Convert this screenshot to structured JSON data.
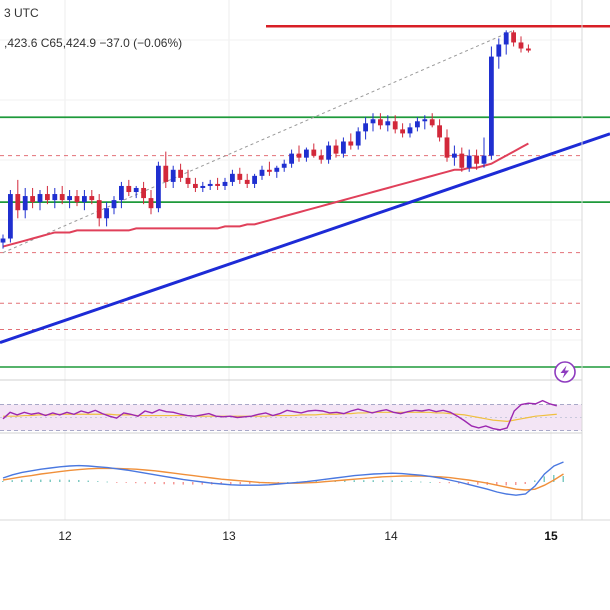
{
  "header": {
    "timezone_fragment": "3 UTC",
    "ohlc_fragment": ",423.6  C65,424.9  −37.0 (−0.06%)"
  },
  "colors": {
    "up_candle": "#1f2fd0",
    "down_candle": "#d2283a",
    "resistance_line": "#d81f26",
    "support_line": "#1e9a3a",
    "trend_line": "#1d2bd6",
    "moving_average": "#e0405a",
    "dashed_level": "#d8404a",
    "rsi_line": "#9c27b0",
    "rsi_signal": "#f0c040",
    "rsi_band": "#f3e5f5",
    "macd_line": "#4a78e0",
    "macd_signal": "#f0903a"
  },
  "chart_data": [
    {
      "type": "candlestick",
      "panel": "price",
      "x_ticks": [
        "12",
        "13",
        "14",
        "15"
      ],
      "current_x_tick": "15",
      "annotation_icon": "lightning-bolt-icon",
      "candles": [
        {
          "o": 0.5,
          "h": 0.54,
          "l": 0.47,
          "c": 0.52
        },
        {
          "o": 0.52,
          "h": 0.76,
          "l": 0.5,
          "c": 0.74
        },
        {
          "o": 0.74,
          "h": 0.81,
          "l": 0.62,
          "c": 0.66
        },
        {
          "o": 0.66,
          "h": 0.77,
          "l": 0.62,
          "c": 0.73
        },
        {
          "o": 0.73,
          "h": 0.77,
          "l": 0.67,
          "c": 0.7
        },
        {
          "o": 0.7,
          "h": 0.76,
          "l": 0.66,
          "c": 0.74
        },
        {
          "o": 0.74,
          "h": 0.78,
          "l": 0.69,
          "c": 0.71
        },
        {
          "o": 0.71,
          "h": 0.77,
          "l": 0.67,
          "c": 0.74
        },
        {
          "o": 0.74,
          "h": 0.78,
          "l": 0.69,
          "c": 0.71
        },
        {
          "o": 0.71,
          "h": 0.76,
          "l": 0.67,
          "c": 0.73
        },
        {
          "o": 0.73,
          "h": 0.76,
          "l": 0.68,
          "c": 0.7
        },
        {
          "o": 0.7,
          "h": 0.76,
          "l": 0.66,
          "c": 0.73
        },
        {
          "o": 0.73,
          "h": 0.76,
          "l": 0.69,
          "c": 0.71
        },
        {
          "o": 0.71,
          "h": 0.74,
          "l": 0.58,
          "c": 0.62
        },
        {
          "o": 0.62,
          "h": 0.7,
          "l": 0.58,
          "c": 0.67
        },
        {
          "o": 0.67,
          "h": 0.73,
          "l": 0.64,
          "c": 0.71
        },
        {
          "o": 0.71,
          "h": 0.8,
          "l": 0.67,
          "c": 0.78
        },
        {
          "o": 0.78,
          "h": 0.81,
          "l": 0.73,
          "c": 0.75
        },
        {
          "o": 0.75,
          "h": 0.78,
          "l": 0.72,
          "c": 0.77
        },
        {
          "o": 0.77,
          "h": 0.8,
          "l": 0.69,
          "c": 0.72
        },
        {
          "o": 0.72,
          "h": 0.76,
          "l": 0.64,
          "c": 0.67
        },
        {
          "o": 0.67,
          "h": 0.9,
          "l": 0.65,
          "c": 0.88
        },
        {
          "o": 0.88,
          "h": 0.95,
          "l": 0.77,
          "c": 0.8
        },
        {
          "o": 0.8,
          "h": 0.88,
          "l": 0.77,
          "c": 0.86
        },
        {
          "o": 0.86,
          "h": 0.89,
          "l": 0.8,
          "c": 0.82
        },
        {
          "o": 0.82,
          "h": 0.86,
          "l": 0.77,
          "c": 0.79
        },
        {
          "o": 0.79,
          "h": 0.82,
          "l": 0.75,
          "c": 0.77
        },
        {
          "o": 0.77,
          "h": 0.8,
          "l": 0.75,
          "c": 0.78
        },
        {
          "o": 0.78,
          "h": 0.81,
          "l": 0.76,
          "c": 0.79
        },
        {
          "o": 0.79,
          "h": 0.82,
          "l": 0.76,
          "c": 0.78
        },
        {
          "o": 0.78,
          "h": 0.82,
          "l": 0.76,
          "c": 0.8
        },
        {
          "o": 0.8,
          "h": 0.86,
          "l": 0.78,
          "c": 0.84
        },
        {
          "o": 0.84,
          "h": 0.87,
          "l": 0.79,
          "c": 0.81
        },
        {
          "o": 0.81,
          "h": 0.84,
          "l": 0.77,
          "c": 0.79
        },
        {
          "o": 0.79,
          "h": 0.84,
          "l": 0.77,
          "c": 0.83
        },
        {
          "o": 0.83,
          "h": 0.88,
          "l": 0.81,
          "c": 0.86
        },
        {
          "o": 0.86,
          "h": 0.9,
          "l": 0.83,
          "c": 0.85
        },
        {
          "o": 0.85,
          "h": 0.88,
          "l": 0.82,
          "c": 0.87
        },
        {
          "o": 0.87,
          "h": 0.91,
          "l": 0.85,
          "c": 0.89
        },
        {
          "o": 0.89,
          "h": 0.96,
          "l": 0.87,
          "c": 0.94
        },
        {
          "o": 0.94,
          "h": 0.98,
          "l": 0.9,
          "c": 0.92
        },
        {
          "o": 0.92,
          "h": 0.97,
          "l": 0.9,
          "c": 0.96
        },
        {
          "o": 0.96,
          "h": 0.99,
          "l": 0.92,
          "c": 0.93
        },
        {
          "o": 0.93,
          "h": 0.96,
          "l": 0.89,
          "c": 0.91
        },
        {
          "o": 0.91,
          "h": 1.0,
          "l": 0.89,
          "c": 0.98
        },
        {
          "o": 0.98,
          "h": 1.01,
          "l": 0.92,
          "c": 0.94
        },
        {
          "o": 0.94,
          "h": 1.02,
          "l": 0.92,
          "c": 1.0
        },
        {
          "o": 1.0,
          "h": 1.04,
          "l": 0.96,
          "c": 0.98
        },
        {
          "o": 0.98,
          "h": 1.07,
          "l": 0.96,
          "c": 1.05
        },
        {
          "o": 1.05,
          "h": 1.12,
          "l": 1.01,
          "c": 1.09
        },
        {
          "o": 1.09,
          "h": 1.14,
          "l": 1.05,
          "c": 1.11
        },
        {
          "o": 1.11,
          "h": 1.14,
          "l": 1.06,
          "c": 1.08
        },
        {
          "o": 1.08,
          "h": 1.13,
          "l": 1.05,
          "c": 1.1
        },
        {
          "o": 1.1,
          "h": 1.13,
          "l": 1.04,
          "c": 1.06
        },
        {
          "o": 1.06,
          "h": 1.09,
          "l": 1.02,
          "c": 1.04
        },
        {
          "o": 1.04,
          "h": 1.09,
          "l": 1.02,
          "c": 1.07
        },
        {
          "o": 1.07,
          "h": 1.12,
          "l": 1.05,
          "c": 1.1
        },
        {
          "o": 1.1,
          "h": 1.13,
          "l": 1.06,
          "c": 1.11
        },
        {
          "o": 1.11,
          "h": 1.14,
          "l": 1.07,
          "c": 1.08
        },
        {
          "o": 1.08,
          "h": 1.11,
          "l": 1.0,
          "c": 1.02
        },
        {
          "o": 1.02,
          "h": 1.06,
          "l": 0.9,
          "c": 0.92
        },
        {
          "o": 0.92,
          "h": 0.98,
          "l": 0.88,
          "c": 0.94
        },
        {
          "o": 0.94,
          "h": 0.97,
          "l": 0.85,
          "c": 0.87
        },
        {
          "o": 0.87,
          "h": 0.96,
          "l": 0.85,
          "c": 0.93
        },
        {
          "o": 0.93,
          "h": 0.96,
          "l": 0.86,
          "c": 0.89
        },
        {
          "o": 0.89,
          "h": 1.02,
          "l": 0.87,
          "c": 0.93
        },
        {
          "o": 0.93,
          "h": 1.47,
          "l": 0.91,
          "c": 1.42
        },
        {
          "o": 1.42,
          "h": 1.51,
          "l": 1.36,
          "c": 1.48
        },
        {
          "o": 1.48,
          "h": 1.55,
          "l": 1.43,
          "c": 1.54
        },
        {
          "o": 1.54,
          "h": 1.55,
          "l": 1.47,
          "c": 1.49
        },
        {
          "o": 1.49,
          "h": 1.52,
          "l": 1.44,
          "c": 1.46
        },
        {
          "o": 1.46,
          "h": 1.48,
          "l": 1.44,
          "c": 1.45
        }
      ],
      "resistance_level": 1.57,
      "support_levels": [
        1.12,
        0.7
      ],
      "dashed_levels": [
        0.93,
        0.45,
        0.2,
        0.07
      ],
      "trend_line": {
        "from": [
          0,
          0.01
        ],
        "to": [
          75,
          0.95
        ]
      },
      "dashed_channel": {
        "from": [
          0,
          0.45
        ],
        "to": [
          69,
          1.55
        ]
      },
      "moving_average": [
        0.48,
        0.49,
        0.5,
        0.51,
        0.52,
        0.53,
        0.54,
        0.55,
        0.55,
        0.55,
        0.56,
        0.56,
        0.56,
        0.56,
        0.56,
        0.56,
        0.56,
        0.56,
        0.57,
        0.57,
        0.57,
        0.57,
        0.57,
        0.57,
        0.57,
        0.57,
        0.57,
        0.57,
        0.57,
        0.57,
        0.58,
        0.58,
        0.58,
        0.59,
        0.59,
        0.6,
        0.61,
        0.62,
        0.63,
        0.64,
        0.65,
        0.66,
        0.67,
        0.68,
        0.69,
        0.7,
        0.71,
        0.72,
        0.73,
        0.74,
        0.75,
        0.76,
        0.77,
        0.78,
        0.79,
        0.8,
        0.81,
        0.82,
        0.83,
        0.84,
        0.85,
        0.86,
        0.86,
        0.87,
        0.87,
        0.88,
        0.89,
        0.91,
        0.93,
        0.95,
        0.97,
        0.99
      ]
    },
    {
      "type": "line",
      "panel": "rsi",
      "band": [
        30,
        70
      ],
      "series": [
        {
          "values": [
            48,
            58,
            54,
            58,
            55,
            57,
            53,
            57,
            54,
            58,
            55,
            60,
            57,
            61,
            56,
            52,
            49,
            57,
            55,
            52,
            60,
            57,
            62,
            59,
            58,
            55,
            53,
            52,
            54,
            56,
            52,
            51,
            52,
            50,
            51,
            52,
            55,
            57,
            53,
            56,
            61,
            59,
            57,
            60,
            61,
            60,
            57,
            58,
            56,
            60,
            63,
            60,
            57,
            60,
            62,
            58,
            56,
            59,
            61,
            60,
            62,
            59,
            61,
            58,
            52,
            45,
            37,
            34,
            37,
            33,
            31,
            34,
            60,
            70,
            72,
            71,
            76,
            71,
            68
          ]
        },
        {
          "values": [
            52,
            52,
            52,
            53,
            53,
            54,
            54,
            54,
            55,
            55,
            55,
            55,
            55,
            55,
            55,
            55,
            54,
            54,
            54,
            53,
            53,
            53,
            53,
            53,
            53,
            53,
            53,
            52,
            52,
            52,
            52,
            52,
            52,
            52,
            52,
            52,
            52,
            52,
            53,
            53,
            53,
            53,
            54,
            54,
            54,
            55,
            55,
            55,
            56,
            56,
            57,
            57,
            58,
            58,
            58,
            58,
            58,
            58,
            58,
            58,
            58,
            57,
            57,
            56,
            55,
            54,
            52,
            50,
            48,
            46,
            45,
            44,
            46,
            48,
            50,
            52,
            53,
            54,
            55
          ]
        }
      ]
    },
    {
      "type": "line",
      "panel": "macd",
      "series": [
        {
          "values": [
            0.1,
            0.18,
            0.24,
            0.28,
            0.32,
            0.35,
            0.38,
            0.4,
            0.41,
            0.4,
            0.38,
            0.36,
            0.33,
            0.3,
            0.26,
            0.22,
            0.18,
            0.14,
            0.1,
            0.06,
            0.03,
            0.0,
            -0.03,
            -0.05,
            -0.07,
            -0.08,
            -0.08,
            -0.08,
            -0.07,
            -0.05,
            -0.03,
            -0.01,
            0.01,
            0.04,
            0.07,
            0.1,
            0.13,
            0.16,
            0.18,
            0.2,
            0.21,
            0.22,
            0.21,
            0.19,
            0.17,
            0.14,
            0.1,
            0.05,
            0.0,
            -0.06,
            -0.12,
            -0.18,
            -0.25,
            -0.3,
            -0.33,
            -0.3,
            -0.1,
            0.2,
            0.4,
            0.5
          ]
        },
        {
          "values": [
            0.05,
            0.09,
            0.13,
            0.16,
            0.2,
            0.23,
            0.26,
            0.29,
            0.31,
            0.33,
            0.34,
            0.34,
            0.34,
            0.33,
            0.32,
            0.3,
            0.28,
            0.25,
            0.22,
            0.19,
            0.16,
            0.13,
            0.1,
            0.07,
            0.05,
            0.03,
            0.01,
            -0.01,
            -0.02,
            -0.03,
            -0.03,
            -0.03,
            -0.02,
            -0.01,
            0.01,
            0.03,
            0.05,
            0.07,
            0.09,
            0.11,
            0.13,
            0.14,
            0.15,
            0.15,
            0.15,
            0.14,
            0.13,
            0.11,
            0.08,
            0.05,
            0.01,
            -0.03,
            -0.08,
            -0.13,
            -0.18,
            -0.2,
            -0.18,
            -0.08,
            0.05,
            0.2
          ]
        },
        {
          "values": [
            0.05,
            0.09,
            0.11,
            0.12,
            0.12,
            0.12,
            0.12,
            0.11,
            0.1,
            0.07,
            0.04,
            0.02,
            -0.01,
            -0.03,
            -0.06,
            -0.08,
            -0.1,
            -0.11,
            -0.12,
            -0.13,
            -0.13,
            -0.13,
            -0.13,
            -0.12,
            -0.12,
            -0.11,
            -0.09,
            -0.07,
            -0.05,
            -0.02,
            0.0,
            0.02,
            0.03,
            0.05,
            0.06,
            0.07,
            0.08,
            0.09,
            0.09,
            0.09,
            0.08,
            0.08,
            0.06,
            0.04,
            0.02,
            0.0,
            -0.03,
            -0.06,
            -0.08,
            -0.11,
            -0.13,
            -0.15,
            -0.17,
            -0.17,
            -0.15,
            -0.1,
            0.08,
            0.28,
            0.35,
            0.3
          ]
        }
      ]
    }
  ]
}
